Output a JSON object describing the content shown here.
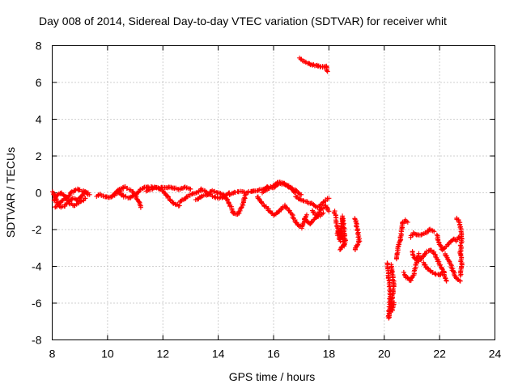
{
  "chart_data": {
    "type": "scatter",
    "title": "Day 008 of 2014, Sidereal Day-to-day VTEC variation (SDTVAR) for receiver whit",
    "xlabel": "GPS time / hours",
    "ylabel": "SDTVAR / TECUs",
    "xlim": [
      8,
      24
    ],
    "ylim": [
      -8,
      8
    ],
    "xticks": [
      8,
      10,
      12,
      14,
      16,
      18,
      20,
      22,
      24
    ],
    "yticks": [
      -8,
      -6,
      -4,
      -2,
      0,
      2,
      4,
      6,
      8
    ],
    "grid": true,
    "marker": "+",
    "series_color": "#ff0000",
    "series": [
      {
        "name": "SDTVAR",
        "segments": [
          [
            [
              8.0,
              0.1
            ],
            [
              8.1,
              -0.2
            ],
            [
              8.2,
              -0.6
            ],
            [
              8.3,
              -0.8
            ],
            [
              8.45,
              -0.7
            ],
            [
              8.6,
              -0.5
            ],
            [
              8.75,
              -0.3
            ],
            [
              8.9,
              -0.4
            ],
            [
              9.05,
              -0.2
            ],
            [
              9.2,
              0.0
            ],
            [
              9.35,
              -0.1
            ]
          ],
          [
            [
              8.05,
              -0.4
            ],
            [
              8.2,
              -0.1
            ],
            [
              8.35,
              0.0
            ],
            [
              8.5,
              -0.2
            ],
            [
              8.65,
              -0.6
            ],
            [
              8.8,
              -0.7
            ],
            [
              9.0,
              -0.5
            ],
            [
              9.2,
              -0.3
            ]
          ],
          [
            [
              8.1,
              -0.8
            ],
            [
              8.3,
              -0.5
            ],
            [
              8.5,
              -0.3
            ],
            [
              8.7,
              0.0
            ],
            [
              8.9,
              0.2
            ],
            [
              9.1,
              0.1
            ],
            [
              9.3,
              0.0
            ]
          ],
          [
            [
              9.6,
              -0.2
            ],
            [
              9.75,
              -0.1
            ],
            [
              9.9,
              -0.2
            ],
            [
              10.05,
              -0.25
            ],
            [
              10.2,
              -0.15
            ],
            [
              10.35,
              0.0
            ],
            [
              10.5,
              0.1
            ]
          ],
          [
            [
              10.2,
              -0.1
            ],
            [
              10.35,
              0.1
            ],
            [
              10.5,
              0.25
            ],
            [
              10.65,
              0.3
            ],
            [
              10.8,
              0.15
            ],
            [
              10.95,
              0.0
            ],
            [
              11.1,
              -0.4
            ],
            [
              11.2,
              -0.8
            ]
          ],
          [
            [
              10.4,
              0.0
            ],
            [
              10.6,
              -0.2
            ],
            [
              10.8,
              -0.3
            ],
            [
              11.0,
              -0.1
            ],
            [
              11.2,
              0.2
            ],
            [
              11.4,
              0.3
            ],
            [
              11.6,
              0.3
            ],
            [
              11.8,
              0.25
            ],
            [
              12.0,
              0.3
            ],
            [
              12.2,
              0.3
            ],
            [
              12.4,
              0.25
            ],
            [
              12.6,
              0.2
            ],
            [
              12.8,
              0.3
            ],
            [
              13.0,
              0.2
            ]
          ],
          [
            [
              11.4,
              0.1
            ],
            [
              11.6,
              0.2
            ],
            [
              11.8,
              0.3
            ],
            [
              12.0,
              0.1
            ],
            [
              12.2,
              -0.3
            ],
            [
              12.4,
              -0.6
            ],
            [
              12.6,
              -0.7
            ]
          ],
          [
            [
              12.6,
              -0.5
            ],
            [
              12.8,
              -0.3
            ],
            [
              13.0,
              -0.1
            ],
            [
              13.2,
              0.0
            ],
            [
              13.4,
              0.2
            ],
            [
              13.6,
              0.0
            ],
            [
              13.8,
              -0.2
            ],
            [
              14.0,
              -0.3
            ],
            [
              14.2,
              -0.2
            ],
            [
              14.4,
              0.0
            ]
          ],
          [
            [
              13.2,
              -0.4
            ],
            [
              13.4,
              -0.2
            ],
            [
              13.6,
              -0.1
            ],
            [
              13.8,
              0.1
            ],
            [
              14.0,
              0.0
            ],
            [
              14.2,
              -0.1
            ],
            [
              14.4,
              -0.6
            ],
            [
              14.55,
              -1.1
            ],
            [
              14.7,
              -1.2
            ],
            [
              14.85,
              -0.8
            ],
            [
              15.0,
              -0.1
            ]
          ],
          [
            [
              14.4,
              -0.1
            ],
            [
              14.6,
              0.0
            ],
            [
              14.8,
              0.1
            ],
            [
              15.0,
              0.0
            ],
            [
              15.2,
              0.1
            ],
            [
              15.4,
              0.1
            ],
            [
              15.6,
              0.2
            ],
            [
              15.8,
              0.3
            ],
            [
              16.0,
              0.3
            ],
            [
              16.2,
              0.5
            ],
            [
              16.4,
              0.45
            ],
            [
              16.6,
              0.3
            ],
            [
              16.8,
              0.1
            ],
            [
              17.0,
              -0.1
            ]
          ],
          [
            [
              15.4,
              -0.2
            ],
            [
              15.6,
              -0.6
            ],
            [
              15.8,
              -0.9
            ],
            [
              16.0,
              -1.2
            ],
            [
              16.2,
              -1.0
            ],
            [
              16.4,
              -0.7
            ],
            [
              16.6,
              -1.0
            ],
            [
              16.8,
              -1.6
            ],
            [
              17.0,
              -1.9
            ],
            [
              17.2,
              -1.2
            ]
          ],
          [
            [
              15.6,
              0.0
            ],
            [
              15.8,
              0.2
            ],
            [
              16.0,
              0.4
            ],
            [
              16.2,
              0.6
            ],
            [
              16.4,
              0.5
            ],
            [
              16.6,
              0.3
            ],
            [
              16.8,
              0.0
            ]
          ],
          [
            [
              16.8,
              -0.2
            ],
            [
              17.0,
              -0.4
            ],
            [
              17.2,
              -0.5
            ],
            [
              17.4,
              -0.6
            ],
            [
              17.6,
              -0.8
            ],
            [
              17.8,
              -0.5
            ],
            [
              18.0,
              -0.3
            ]
          ],
          [
            [
              17.1,
              -1.4
            ],
            [
              17.3,
              -1.7
            ],
            [
              17.5,
              -1.4
            ],
            [
              17.7,
              -0.9
            ],
            [
              17.9,
              -0.7
            ],
            [
              18.0,
              -1.0
            ]
          ],
          [
            [
              17.4,
              -1.0
            ],
            [
              17.6,
              -1.3
            ],
            [
              17.8,
              -1.1
            ]
          ],
          [
            [
              18.2,
              -1.0
            ],
            [
              18.25,
              -1.4
            ],
            [
              18.3,
              -1.8
            ],
            [
              18.35,
              -2.2
            ],
            [
              18.4,
              -2.6
            ],
            [
              18.45,
              -1.7
            ],
            [
              18.5,
              -1.3
            ],
            [
              18.55,
              -2.0
            ],
            [
              18.6,
              -2.7
            ],
            [
              18.4,
              -3.1
            ]
          ],
          [
            [
              18.3,
              -2.3
            ],
            [
              18.4,
              -2.0
            ],
            [
              18.5,
              -2.5
            ],
            [
              18.55,
              -2.9
            ]
          ],
          [
            [
              18.95,
              -1.4
            ],
            [
              19.0,
              -1.7
            ],
            [
              19.05,
              -2.2
            ],
            [
              19.1,
              -2.6
            ],
            [
              19.0,
              -2.9
            ],
            [
              18.95,
              -3.1
            ]
          ],
          [
            [
              16.95,
              7.3
            ],
            [
              17.05,
              7.2
            ],
            [
              17.15,
              7.1
            ],
            [
              17.3,
              7.0
            ],
            [
              17.45,
              6.95
            ],
            [
              17.6,
              6.9
            ],
            [
              17.75,
              6.85
            ],
            [
              17.9,
              6.9
            ],
            [
              17.95,
              6.6
            ]
          ],
          [
            [
              20.1,
              -3.8
            ],
            [
              20.15,
              -4.4
            ],
            [
              20.2,
              -5.2
            ],
            [
              20.2,
              -6.1
            ],
            [
              20.15,
              -6.8
            ],
            [
              20.25,
              -6.3
            ],
            [
              20.3,
              -5.6
            ],
            [
              20.35,
              -5.0
            ],
            [
              20.3,
              -4.5
            ],
            [
              20.25,
              -3.9
            ]
          ],
          [
            [
              20.35,
              -6.0
            ],
            [
              20.3,
              -6.4
            ]
          ],
          [
            [
              20.45,
              -3.6
            ],
            [
              20.5,
              -2.9
            ],
            [
              20.6,
              -2.4
            ],
            [
              20.65,
              -1.6
            ],
            [
              20.75,
              -1.5
            ],
            [
              20.85,
              -1.6
            ]
          ],
          [
            [
              20.7,
              -4.3
            ],
            [
              20.8,
              -4.6
            ],
            [
              20.95,
              -4.8
            ],
            [
              21.05,
              -4.5
            ],
            [
              21.15,
              -3.9
            ],
            [
              21.25,
              -3.3
            ]
          ],
          [
            [
              20.95,
              -2.4
            ],
            [
              21.05,
              -2.2
            ],
            [
              21.2,
              -2.3
            ],
            [
              21.35,
              -2.3
            ],
            [
              21.5,
              -2.2
            ],
            [
              21.65,
              -2.0
            ],
            [
              21.8,
              -2.1
            ]
          ],
          [
            [
              21.0,
              -3.2
            ],
            [
              21.1,
              -3.6
            ],
            [
              21.25,
              -3.7
            ],
            [
              21.4,
              -3.5
            ],
            [
              21.55,
              -3.2
            ],
            [
              21.7,
              -3.1
            ],
            [
              21.85,
              -3.4
            ],
            [
              22.0,
              -3.9
            ],
            [
              22.15,
              -4.3
            ],
            [
              22.25,
              -4.8
            ]
          ],
          [
            [
              21.4,
              -3.8
            ],
            [
              21.55,
              -4.1
            ],
            [
              21.7,
              -4.3
            ],
            [
              21.85,
              -4.4
            ],
            [
              22.0,
              -4.5
            ],
            [
              22.1,
              -4.3
            ]
          ],
          [
            [
              21.9,
              -2.3
            ],
            [
              22.0,
              -2.8
            ],
            [
              22.1,
              -3.1
            ],
            [
              22.2,
              -3.0
            ],
            [
              22.3,
              -2.8
            ],
            [
              22.4,
              -2.7
            ],
            [
              22.5,
              -2.5
            ],
            [
              22.6,
              -2.6
            ],
            [
              22.7,
              -2.4
            ]
          ],
          [
            [
              22.2,
              -3.3
            ],
            [
              22.3,
              -3.6
            ],
            [
              22.4,
              -3.9
            ],
            [
              22.5,
              -4.3
            ],
            [
              22.6,
              -4.6
            ],
            [
              22.75,
              -4.8
            ]
          ],
          [
            [
              22.6,
              -1.4
            ],
            [
              22.7,
              -1.5
            ],
            [
              22.75,
              -1.9
            ],
            [
              22.8,
              -2.5
            ],
            [
              22.75,
              -3.2
            ],
            [
              22.8,
              -3.9
            ],
            [
              22.75,
              -4.5
            ]
          ]
        ]
      }
    ]
  }
}
